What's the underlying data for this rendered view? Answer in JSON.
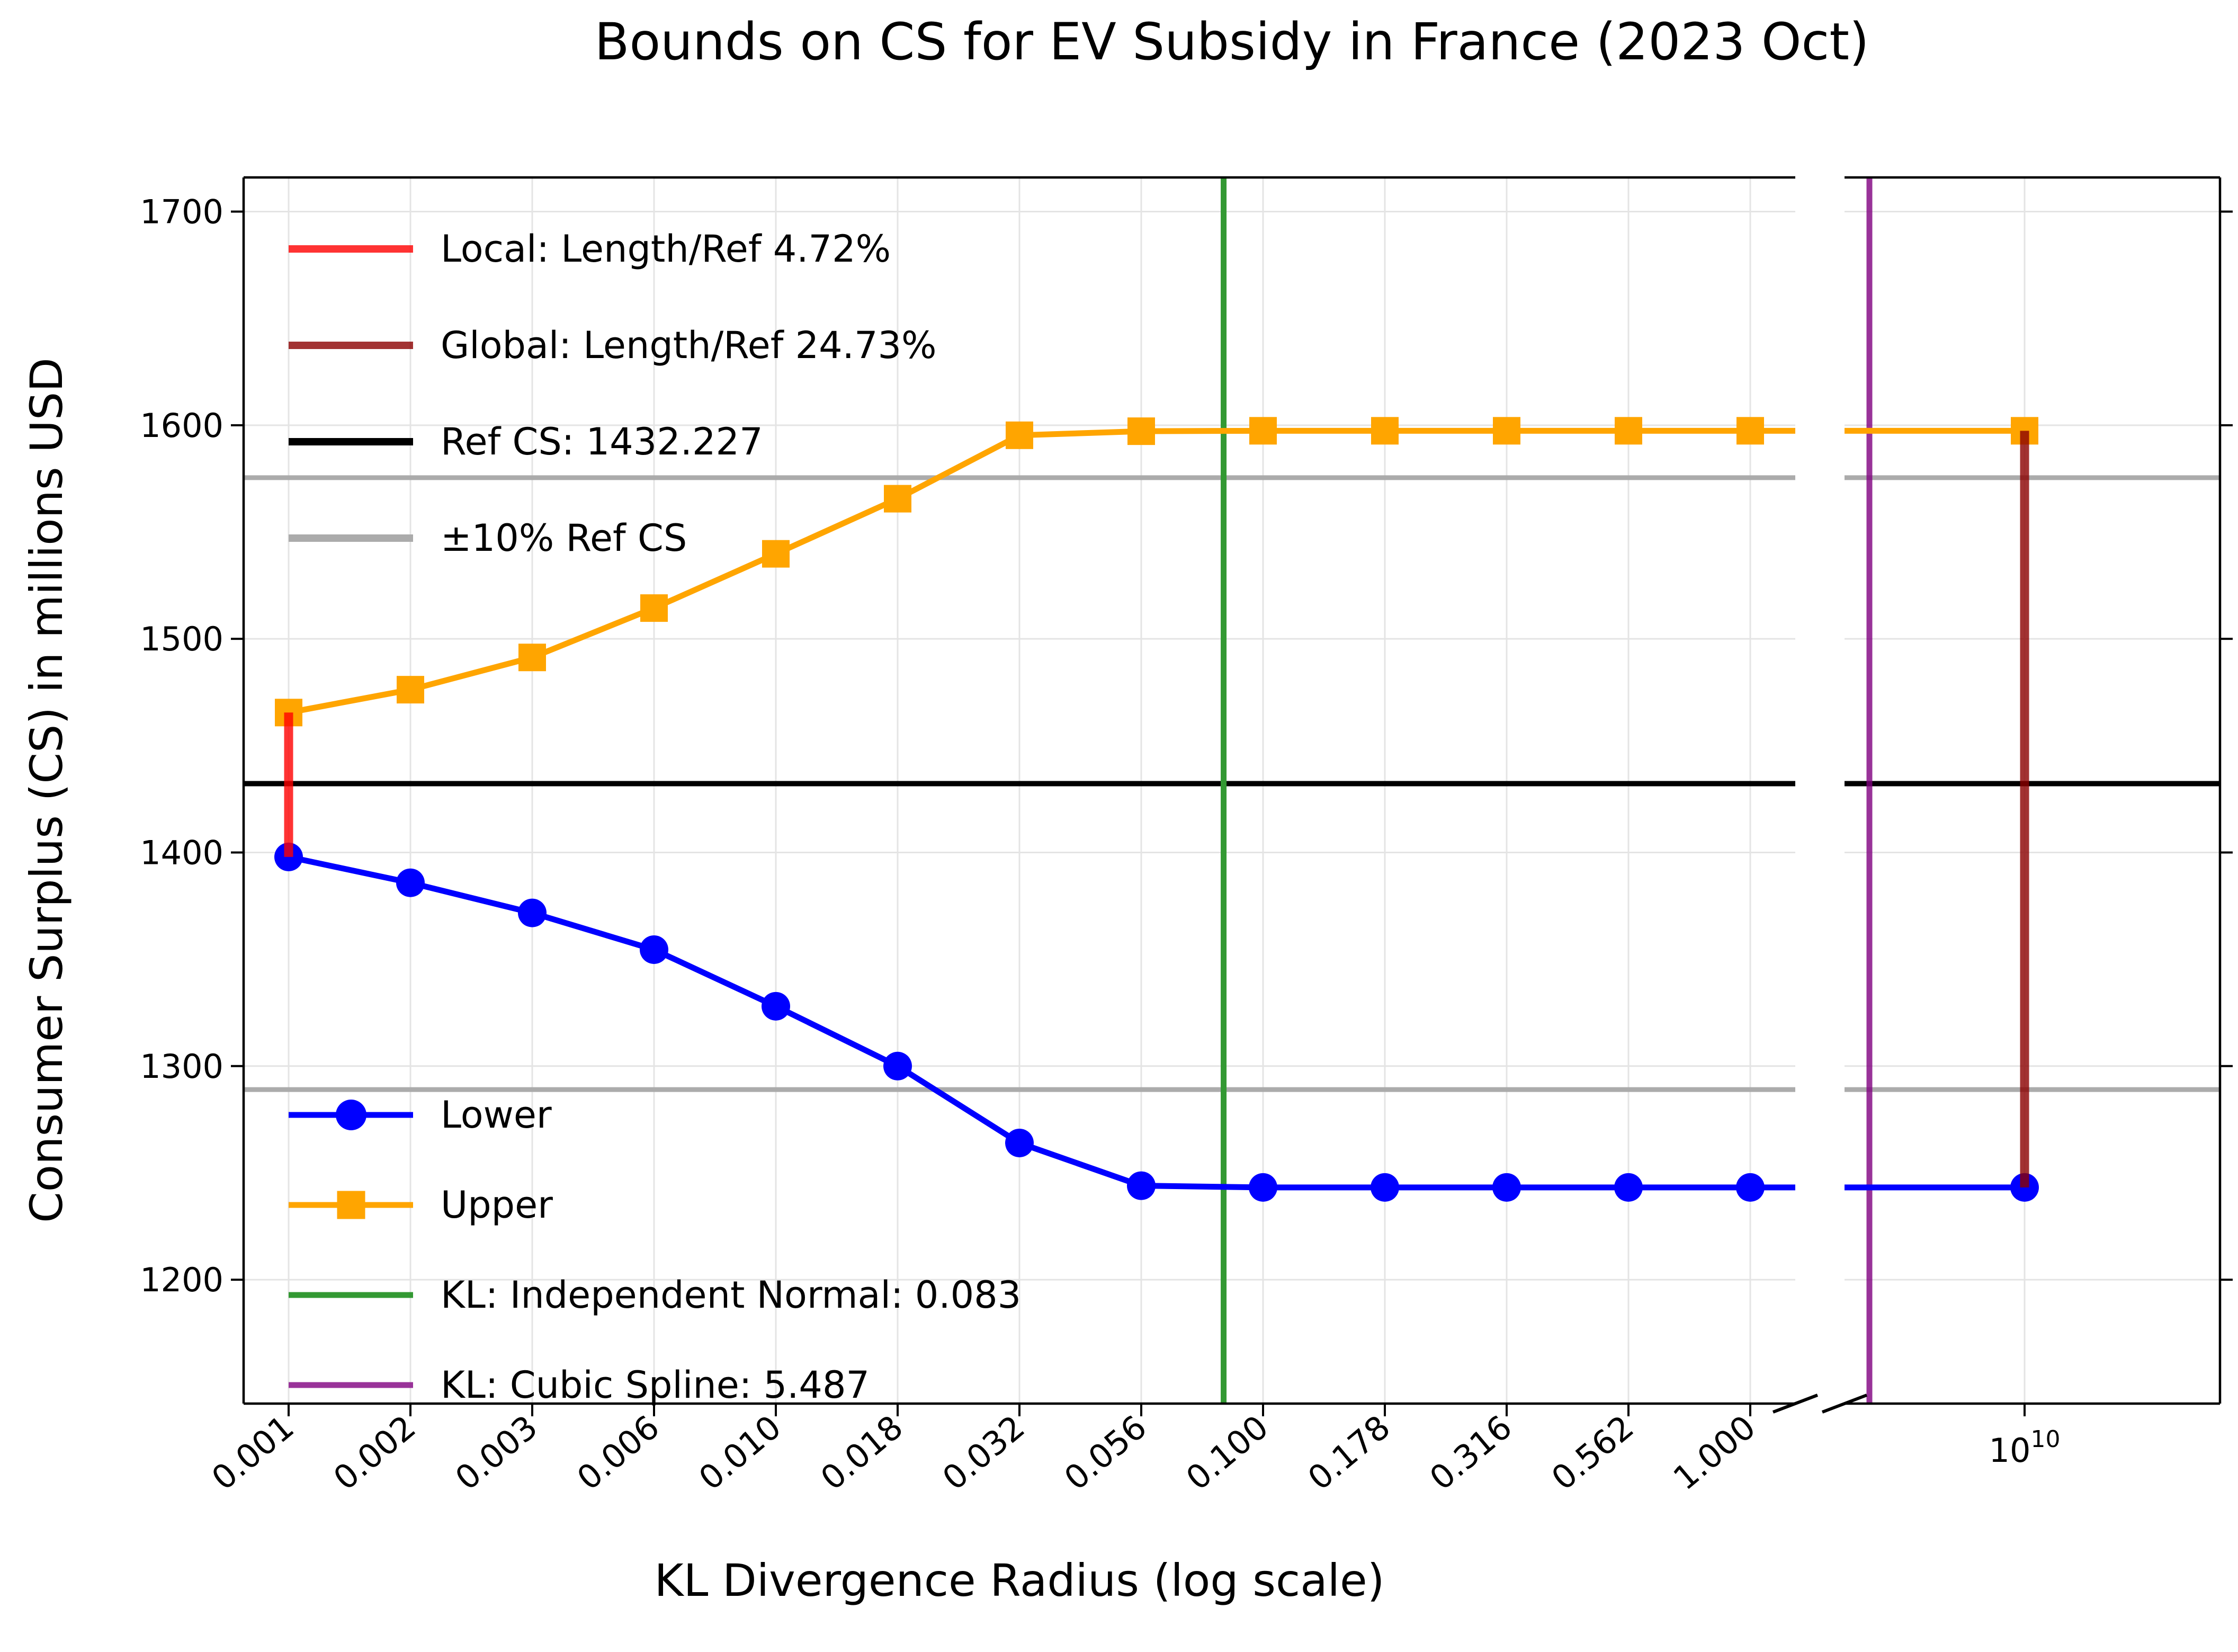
{
  "chart_data": {
    "type": "line",
    "title": "Bounds on CS for EV Subsidy in France (2023 Oct)",
    "xlabel": "KL Divergence Radius (log scale)",
    "ylabel": "Consumer Surplus (CS) in millions USD",
    "x_scale": "log",
    "broken_axis": true,
    "x_tick_labels": [
      "0.001",
      "0.002",
      "0.003",
      "0.006",
      "0.010",
      "0.018",
      "0.032",
      "0.056",
      "0.100",
      "0.178",
      "0.316",
      "0.562",
      "1.000"
    ],
    "x_values": [
      0.001,
      0.00178,
      0.00316,
      0.00562,
      0.01,
      0.01778,
      0.03162,
      0.05623,
      0.1,
      0.17783,
      0.31623,
      0.56234,
      1.0
    ],
    "far_x_label": {
      "base": "10",
      "exp": "10"
    },
    "y_ticks": [
      1200,
      1300,
      1400,
      1500,
      1600,
      1700
    ],
    "y_tick_labels": [
      "1200",
      "1300",
      "1400",
      "1500",
      "1600",
      "1700"
    ],
    "ylim": [
      1142,
      1716
    ],
    "grid": true,
    "legend_position": "upper-left and lower-left, frameless",
    "series": [
      {
        "name": "Lower",
        "color": "#0000ff",
        "marker": "circle",
        "values": [
          1397.9,
          1385.8,
          1371.7,
          1354.5,
          1328.0,
          1300.0,
          1264.0,
          1244.0,
          1243.2,
          1243.2,
          1243.2,
          1243.2,
          1243.2
        ],
        "far_value": 1243.2
      },
      {
        "name": "Upper",
        "color": "#ffa500",
        "marker": "square",
        "values": [
          1465.5,
          1476.2,
          1491.3,
          1514.4,
          1539.8,
          1565.6,
          1595.3,
          1597.2,
          1597.4,
          1597.4,
          1597.4,
          1597.4,
          1597.4
        ],
        "far_value": 1597.4
      }
    ],
    "ref_cs": 1432.227,
    "band_upper": 1575.45,
    "band_lower": 1289.0,
    "kl_independent_normal": 0.083,
    "kl_cubic_spline": 5.487,
    "local_segment": {
      "x": 0.001,
      "y1": 1397.9,
      "y2": 1465.5
    },
    "global_segment": {
      "y1": 1243.2,
      "y2": 1597.4
    },
    "colors": {
      "lower": "#0000ff",
      "upper": "#ffa500",
      "local": "rgba(255,0,0,0.8)",
      "global": "rgba(139,0,0,0.8)",
      "ref": "#000000",
      "band": "#ababab",
      "kl_normal": "#339933",
      "kl_spline": "rgba(128,0,128,0.8)",
      "grid": "#e4e4e4",
      "spine": "#000000"
    },
    "legend_ref": [
      {
        "label": "Local: Length/Ref 4.72%",
        "color": "rgba(255,0,0,0.8)"
      },
      {
        "label": "Global: Length/Ref 24.73%",
        "color": "rgba(139,0,0,0.8)"
      },
      {
        "label": "Ref CS: 1432.227",
        "color": "#000000"
      },
      {
        "label": "±10% Ref CS",
        "color": "#ababab"
      }
    ],
    "legend_series": [
      {
        "label": "Lower",
        "color": "#0000ff",
        "marker": "circle"
      },
      {
        "label": "Upper",
        "color": "#ffa500",
        "marker": "square"
      },
      {
        "label": "KL: Independent Normal: 0.083",
        "color": "#339933",
        "marker": "line"
      },
      {
        "label": "KL: Cubic Spline: 5.487",
        "color": "#993399",
        "marker": "line"
      }
    ]
  }
}
